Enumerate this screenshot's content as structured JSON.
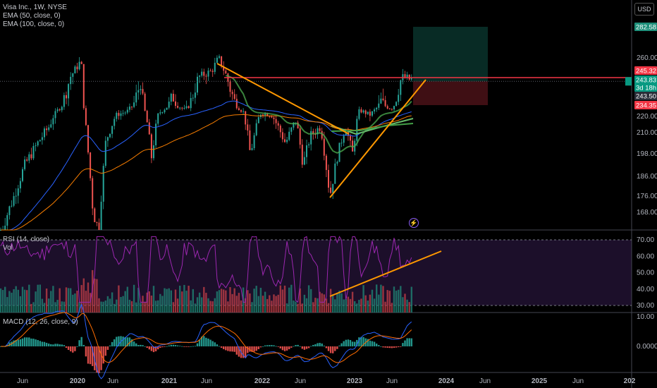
{
  "header": {
    "symbol_line": "Visa Inc., 1W, NYSE",
    "ema1": "EMA (50, close, 0)",
    "ema2": "EMA (100, close, 0)",
    "currency": "USD"
  },
  "rsi_panel": {
    "title": "RSI (14, close)",
    "vol": "Vol",
    "ticks": [
      "70.00",
      "60.00",
      "50.00",
      "40.00",
      "30.00"
    ]
  },
  "macd_panel": {
    "title": "MACD (12, 26, close, 9)",
    "ticks": [
      "10.00",
      "0.0000"
    ]
  },
  "chart_data": {
    "type": "candlestick",
    "price_axis_ticks": [
      "260.00",
      "220.00",
      "210.00",
      "198.00",
      "186.00",
      "176.00",
      "168.00"
    ],
    "x_tick_labels": [
      "Jun",
      "2020",
      "Jun",
      "2021",
      "Jun",
      "2022",
      "Jun",
      "2023",
      "Jun",
      "2024",
      "Jun",
      "2025",
      "Jun",
      "202"
    ],
    "price_tags": [
      {
        "text": "282.58",
        "color": "#1e8f7a"
      },
      {
        "text": "245.32",
        "color": "#f23645"
      },
      {
        "text": "243.83",
        "color": "#089981"
      },
      {
        "text": "3d 18h",
        "color": "#089981"
      },
      {
        "text": "243.50",
        "color": "#2a2e39"
      },
      {
        "text": "234.35",
        "color": "#f23645"
      }
    ],
    "last_price": 243.83,
    "resistance": 245.32,
    "target": 282.58,
    "stop": 234.35,
    "ema_colors": {
      "ema50": "#2962ff",
      "ema100": "#f57c00"
    },
    "accent_colors": {
      "trendline": "#ff9800",
      "rsi": "#9c27b0",
      "up": "#26a69a",
      "down": "#ef5350"
    }
  }
}
